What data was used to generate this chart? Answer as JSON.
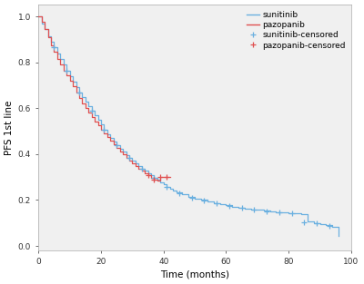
{
  "title": "",
  "xlabel": "Time (months)",
  "ylabel": "PFS 1st line",
  "xlim": [
    0,
    100
  ],
  "ylim": [
    -0.02,
    1.05
  ],
  "xticks": [
    0,
    20,
    40,
    60,
    80,
    100
  ],
  "yticks": [
    0.0,
    0.2,
    0.4,
    0.6,
    0.8,
    1.0
  ],
  "sunitinib_color": "#6ab0e0",
  "pazopanib_color": "#e05050",
  "plot_bg_color": "#f0f0f0",
  "figure_bg_color": "#ffffff",
  "sunitinib_steps": [
    [
      0,
      1.0
    ],
    [
      1,
      0.97
    ],
    [
      2,
      0.945
    ],
    [
      3,
      0.915
    ],
    [
      4,
      0.89
    ],
    [
      5,
      0.865
    ],
    [
      6,
      0.84
    ],
    [
      7,
      0.815
    ],
    [
      8,
      0.79
    ],
    [
      9,
      0.765
    ],
    [
      10,
      0.74
    ],
    [
      11,
      0.715
    ],
    [
      12,
      0.69
    ],
    [
      13,
      0.668
    ],
    [
      14,
      0.648
    ],
    [
      15,
      0.628
    ],
    [
      16,
      0.608
    ],
    [
      17,
      0.588
    ],
    [
      18,
      0.568
    ],
    [
      19,
      0.548
    ],
    [
      20,
      0.528
    ],
    [
      21,
      0.508
    ],
    [
      22,
      0.488
    ],
    [
      23,
      0.472
    ],
    [
      24,
      0.456
    ],
    [
      25,
      0.44
    ],
    [
      26,
      0.424
    ],
    [
      27,
      0.41
    ],
    [
      28,
      0.396
    ],
    [
      29,
      0.382
    ],
    [
      30,
      0.37
    ],
    [
      31,
      0.358
    ],
    [
      32,
      0.348
    ],
    [
      33,
      0.338
    ],
    [
      34,
      0.328
    ],
    [
      35,
      0.318
    ],
    [
      36,
      0.308
    ],
    [
      37,
      0.298
    ],
    [
      38,
      0.288
    ],
    [
      39,
      0.278
    ],
    [
      40,
      0.268
    ],
    [
      41,
      0.258
    ],
    [
      42,
      0.25
    ],
    [
      43,
      0.242
    ],
    [
      44,
      0.234
    ],
    [
      46,
      0.224
    ],
    [
      48,
      0.215
    ],
    [
      50,
      0.207
    ],
    [
      52,
      0.2
    ],
    [
      54,
      0.193
    ],
    [
      56,
      0.187
    ],
    [
      58,
      0.182
    ],
    [
      60,
      0.177
    ],
    [
      62,
      0.172
    ],
    [
      64,
      0.168
    ],
    [
      66,
      0.164
    ],
    [
      68,
      0.16
    ],
    [
      70,
      0.157
    ],
    [
      72,
      0.154
    ],
    [
      74,
      0.151
    ],
    [
      76,
      0.148
    ],
    [
      78,
      0.146
    ],
    [
      80,
      0.144
    ],
    [
      82,
      0.142
    ],
    [
      84,
      0.14
    ],
    [
      86,
      0.105
    ],
    [
      88,
      0.1
    ],
    [
      90,
      0.095
    ],
    [
      92,
      0.09
    ],
    [
      94,
      0.085
    ],
    [
      96,
      0.045
    ]
  ],
  "sunitinib_censored": [
    [
      5,
      0.865
    ],
    [
      9,
      0.765
    ],
    [
      13,
      0.668
    ],
    [
      17,
      0.588
    ],
    [
      21,
      0.508
    ],
    [
      25,
      0.44
    ],
    [
      29,
      0.382
    ],
    [
      33,
      0.338
    ],
    [
      37,
      0.298
    ],
    [
      41,
      0.258
    ],
    [
      45,
      0.228
    ],
    [
      49,
      0.211
    ],
    [
      53,
      0.196
    ],
    [
      57,
      0.184
    ],
    [
      61,
      0.174
    ],
    [
      65,
      0.166
    ],
    [
      69,
      0.158
    ],
    [
      73,
      0.152
    ],
    [
      77,
      0.147
    ],
    [
      81,
      0.143
    ],
    [
      85,
      0.102
    ],
    [
      89,
      0.097
    ],
    [
      93,
      0.087
    ]
  ],
  "pazopanib_steps": [
    [
      0,
      1.0
    ],
    [
      1,
      0.975
    ],
    [
      2,
      0.945
    ],
    [
      3,
      0.91
    ],
    [
      4,
      0.875
    ],
    [
      5,
      0.845
    ],
    [
      6,
      0.815
    ],
    [
      7,
      0.79
    ],
    [
      8,
      0.765
    ],
    [
      9,
      0.745
    ],
    [
      10,
      0.72
    ],
    [
      11,
      0.695
    ],
    [
      12,
      0.67
    ],
    [
      13,
      0.645
    ],
    [
      14,
      0.622
    ],
    [
      15,
      0.6
    ],
    [
      16,
      0.58
    ],
    [
      17,
      0.56
    ],
    [
      18,
      0.542
    ],
    [
      19,
      0.524
    ],
    [
      20,
      0.506
    ],
    [
      21,
      0.49
    ],
    [
      22,
      0.474
    ],
    [
      23,
      0.458
    ],
    [
      24,
      0.443
    ],
    [
      25,
      0.428
    ],
    [
      26,
      0.413
    ],
    [
      27,
      0.398
    ],
    [
      28,
      0.385
    ],
    [
      29,
      0.372
    ],
    [
      30,
      0.36
    ],
    [
      31,
      0.348
    ],
    [
      32,
      0.338
    ],
    [
      33,
      0.328
    ],
    [
      34,
      0.318
    ],
    [
      35,
      0.308
    ],
    [
      36,
      0.298
    ],
    [
      37,
      0.29
    ],
    [
      38,
      0.283
    ],
    [
      39,
      0.3
    ],
    [
      40,
      0.3
    ],
    [
      41,
      0.3
    ],
    [
      42,
      0.3
    ]
  ],
  "pazopanib_censored": [
    [
      35,
      0.308
    ],
    [
      37,
      0.29
    ],
    [
      39,
      0.3
    ],
    [
      41,
      0.3
    ]
  ],
  "legend_fontsize": 6.5,
  "axis_fontsize": 7.5,
  "tick_fontsize": 6.5
}
